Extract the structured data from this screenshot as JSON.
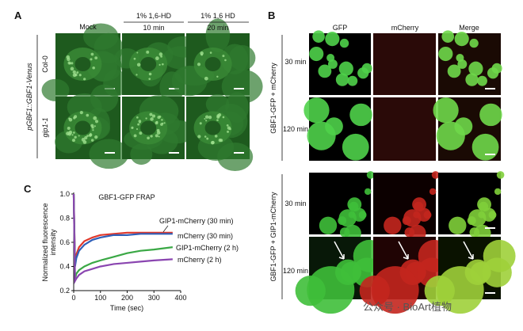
{
  "panel_a": {
    "label": "A",
    "column_headers": [
      "Mock",
      "1% 1,6-HD",
      "1% 1,6 HD"
    ],
    "column_subheaders": [
      "10 min",
      "20 min"
    ],
    "row_labels": [
      "Col-0",
      "gip1-1"
    ],
    "side_label": "pGBF1::GBF1-Venus"
  },
  "panel_b": {
    "label": "B",
    "column_headers": [
      "GFP",
      "mCherry",
      "Merge"
    ],
    "groups": [
      {
        "side_label": "GBF1-GFP + mCherry",
        "row_labels": [
          "30 min",
          "120 min"
        ]
      },
      {
        "side_label": "GBF1-GFP + GIP1-mCherry",
        "row_labels": [
          "30 min",
          "120 min"
        ]
      }
    ]
  },
  "panel_c": {
    "label": "C"
  },
  "watermark": "公众号 · BioArt植物",
  "chart_data": {
    "type": "line",
    "title": "GBF1-GFP FRAP",
    "x_label": "Time (sec)",
    "y_label": [
      "Normalized fluorescence",
      "intensity"
    ],
    "x": [
      0,
      5,
      10,
      20,
      40,
      70,
      100,
      150,
      200,
      250,
      300,
      370
    ],
    "series": [
      {
        "name": "GIP1-mCherry (30 min)",
        "color": "#e0382b",
        "values": [
          1.0,
          0.42,
          0.5,
          0.56,
          0.61,
          0.64,
          0.66,
          0.67,
          0.68,
          0.68,
          0.68,
          0.68
        ]
      },
      {
        "name": "mCherry (30 min)",
        "color": "#2f5fb8",
        "values": [
          1.0,
          0.4,
          0.47,
          0.53,
          0.58,
          0.62,
          0.64,
          0.66,
          0.66,
          0.67,
          0.67,
          0.67
        ]
      },
      {
        "name": "GIP1-mCherry (2 h)",
        "color": "#3aa845",
        "values": [
          1.0,
          0.3,
          0.34,
          0.37,
          0.4,
          0.43,
          0.45,
          0.48,
          0.51,
          0.53,
          0.54,
          0.56
        ]
      },
      {
        "name": "mCherry (2 h)",
        "color": "#8a45b0",
        "values": [
          1.0,
          0.28,
          0.3,
          0.33,
          0.36,
          0.38,
          0.4,
          0.42,
          0.43,
          0.44,
          0.45,
          0.46
        ]
      }
    ],
    "xlim": [
      0,
      400
    ],
    "xticks": [
      0,
      100,
      200,
      300,
      400
    ],
    "ylim": [
      0.2,
      1.0
    ],
    "yticks": [
      0.2,
      0.4,
      0.6,
      0.8,
      {
        "value": 1.0,
        "label": "1.0"
      }
    ]
  }
}
